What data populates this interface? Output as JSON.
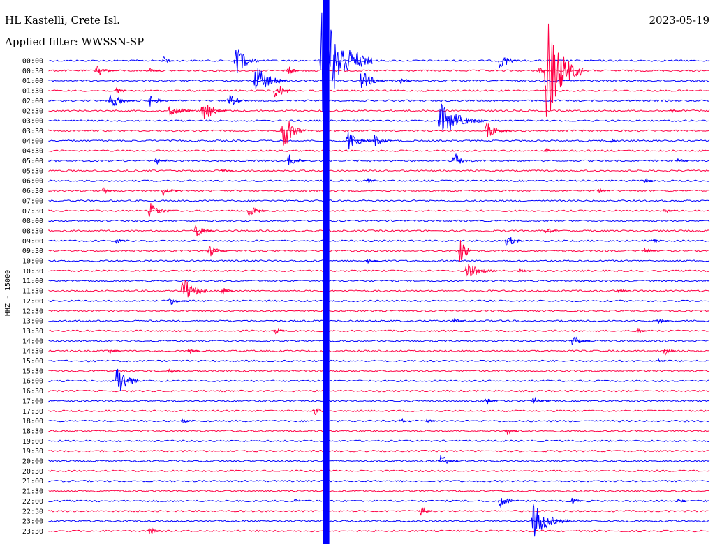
{
  "header": {
    "station": "HL Kastelli, Crete Isl.",
    "date": "2023-05-19",
    "filter": "Applied filter: WWSSN-SP"
  },
  "chart_data": {
    "type": "line",
    "title": "HL Kastelli, Crete Isl.",
    "subtitle": "Applied filter: WWSSN-SP",
    "ylabel": "HHZ - 15000",
    "colors": {
      "even": "#0000ff",
      "odd": "#ff0044"
    },
    "rows": [
      "00:00",
      "00:30",
      "01:00",
      "01:30",
      "02:00",
      "02:30",
      "03:00",
      "03:30",
      "04:00",
      "04:30",
      "05:00",
      "05:30",
      "06:00",
      "06:30",
      "07:00",
      "07:30",
      "08:00",
      "08:30",
      "09:00",
      "09:30",
      "10:00",
      "10:30",
      "11:00",
      "11:30",
      "12:00",
      "12:30",
      "13:00",
      "13:30",
      "14:00",
      "14:30",
      "15:00",
      "15:30",
      "16:00",
      "16:30",
      "17:00",
      "17:30",
      "18:00",
      "18:30",
      "19:00",
      "19:30",
      "20:00",
      "20:30",
      "21:00",
      "21:30",
      "22:00",
      "22:30",
      "23:00",
      "23:30"
    ],
    "events": [
      {
        "row": 0,
        "x": 0.17,
        "amp": 10,
        "dur": 0.02
      },
      {
        "row": 0,
        "x": 0.28,
        "amp": 30,
        "dur": 0.04
      },
      {
        "row": 0,
        "x": 0.41,
        "amp": 95,
        "dur": 0.08
      },
      {
        "row": 0,
        "x": 0.68,
        "amp": 22,
        "dur": 0.03
      },
      {
        "row": 1,
        "x": 0.07,
        "amp": 14,
        "dur": 0.03
      },
      {
        "row": 1,
        "x": 0.15,
        "amp": 8,
        "dur": 0.02
      },
      {
        "row": 1,
        "x": 0.36,
        "amp": 12,
        "dur": 0.02
      },
      {
        "row": 1,
        "x": 0.74,
        "amp": 10,
        "dur": 0.02
      },
      {
        "row": 1,
        "x": 0.75,
        "amp": 95,
        "dur": 0.06
      },
      {
        "row": 2,
        "x": 0.31,
        "amp": 30,
        "dur": 0.05
      },
      {
        "row": 2,
        "x": 0.47,
        "amp": 20,
        "dur": 0.04
      },
      {
        "row": 2,
        "x": 0.53,
        "amp": 10,
        "dur": 0.02
      },
      {
        "row": 3,
        "x": 0.1,
        "amp": 10,
        "dur": 0.02
      },
      {
        "row": 3,
        "x": 0.34,
        "amp": 20,
        "dur": 0.03
      },
      {
        "row": 4,
        "x": 0.09,
        "amp": 18,
        "dur": 0.04
      },
      {
        "row": 4,
        "x": 0.15,
        "amp": 12,
        "dur": 0.03
      },
      {
        "row": 4,
        "x": 0.27,
        "amp": 14,
        "dur": 0.03
      },
      {
        "row": 5,
        "x": 0.18,
        "amp": 14,
        "dur": 0.04
      },
      {
        "row": 5,
        "x": 0.23,
        "amp": 22,
        "dur": 0.04
      },
      {
        "row": 5,
        "x": 0.94,
        "amp": 6,
        "dur": 0.02
      },
      {
        "row": 6,
        "x": 0.59,
        "amp": 30,
        "dur": 0.07
      },
      {
        "row": 7,
        "x": 0.35,
        "amp": 40,
        "dur": 0.04
      },
      {
        "row": 7,
        "x": 0.66,
        "amp": 16,
        "dur": 0.04
      },
      {
        "row": 8,
        "x": 0.45,
        "amp": 18,
        "dur": 0.04
      },
      {
        "row": 8,
        "x": 0.49,
        "amp": 14,
        "dur": 0.03
      },
      {
        "row": 8,
        "x": 0.85,
        "amp": 10,
        "dur": 0.01
      },
      {
        "row": 9,
        "x": 0.75,
        "amp": 6,
        "dur": 0.02
      },
      {
        "row": 10,
        "x": 0.16,
        "amp": 10,
        "dur": 0.02
      },
      {
        "row": 10,
        "x": 0.36,
        "amp": 14,
        "dur": 0.03
      },
      {
        "row": 10,
        "x": 0.61,
        "amp": 30,
        "dur": 0.02
      },
      {
        "row": 10,
        "x": 0.95,
        "amp": 6,
        "dur": 0.02
      },
      {
        "row": 11,
        "x": 0.26,
        "amp": 6,
        "dur": 0.02
      },
      {
        "row": 12,
        "x": 0.48,
        "amp": 6,
        "dur": 0.02
      },
      {
        "row": 12,
        "x": 0.9,
        "amp": 10,
        "dur": 0.02
      },
      {
        "row": 13,
        "x": 0.08,
        "amp": 8,
        "dur": 0.02
      },
      {
        "row": 13,
        "x": 0.17,
        "amp": 10,
        "dur": 0.03
      },
      {
        "row": 13,
        "x": 0.83,
        "amp": 6,
        "dur": 0.02
      },
      {
        "row": 15,
        "x": 0.15,
        "amp": 16,
        "dur": 0.04
      },
      {
        "row": 15,
        "x": 0.3,
        "amp": 14,
        "dur": 0.03
      },
      {
        "row": 15,
        "x": 0.93,
        "amp": 6,
        "dur": 0.02
      },
      {
        "row": 17,
        "x": 0.22,
        "amp": 14,
        "dur": 0.03
      },
      {
        "row": 17,
        "x": 0.75,
        "amp": 10,
        "dur": 0.02
      },
      {
        "row": 18,
        "x": 0.1,
        "amp": 8,
        "dur": 0.02
      },
      {
        "row": 18,
        "x": 0.69,
        "amp": 14,
        "dur": 0.03
      },
      {
        "row": 18,
        "x": 0.91,
        "amp": 10,
        "dur": 0.02
      },
      {
        "row": 19,
        "x": 0.24,
        "amp": 14,
        "dur": 0.03
      },
      {
        "row": 19,
        "x": 0.62,
        "amp": 40,
        "dur": 0.02
      },
      {
        "row": 19,
        "x": 0.9,
        "amp": 10,
        "dur": 0.02
      },
      {
        "row": 20,
        "x": 0.48,
        "amp": 6,
        "dur": 0.02
      },
      {
        "row": 21,
        "x": 0.63,
        "amp": 16,
        "dur": 0.05
      },
      {
        "row": 21,
        "x": 0.71,
        "amp": 6,
        "dur": 0.02
      },
      {
        "row": 23,
        "x": 0.2,
        "amp": 30,
        "dur": 0.04
      },
      {
        "row": 23,
        "x": 0.26,
        "amp": 10,
        "dur": 0.02
      },
      {
        "row": 23,
        "x": 0.86,
        "amp": 8,
        "dur": 0.02
      },
      {
        "row": 24,
        "x": 0.18,
        "amp": 10,
        "dur": 0.03
      },
      {
        "row": 26,
        "x": 0.61,
        "amp": 8,
        "dur": 0.02
      },
      {
        "row": 26,
        "x": 0.92,
        "amp": 10,
        "dur": 0.02
      },
      {
        "row": 27,
        "x": 0.34,
        "amp": 8,
        "dur": 0.02
      },
      {
        "row": 27,
        "x": 0.89,
        "amp": 6,
        "dur": 0.02
      },
      {
        "row": 28,
        "x": 0.79,
        "amp": 12,
        "dur": 0.03
      },
      {
        "row": 29,
        "x": 0.09,
        "amp": 6,
        "dur": 0.02
      },
      {
        "row": 29,
        "x": 0.21,
        "amp": 6,
        "dur": 0.02
      },
      {
        "row": 29,
        "x": 0.93,
        "amp": 10,
        "dur": 0.02
      },
      {
        "row": 30,
        "x": 0.92,
        "amp": 4,
        "dur": 0.02
      },
      {
        "row": 31,
        "x": 0.18,
        "amp": 6,
        "dur": 0.02
      },
      {
        "row": 32,
        "x": 0.1,
        "amp": 34,
        "dur": 0.04
      },
      {
        "row": 34,
        "x": 0.66,
        "amp": 8,
        "dur": 0.02
      },
      {
        "row": 34,
        "x": 0.73,
        "amp": 10,
        "dur": 0.03
      },
      {
        "row": 35,
        "x": 0.4,
        "amp": 12,
        "dur": 0.02
      },
      {
        "row": 36,
        "x": 0.2,
        "amp": 6,
        "dur": 0.02
      },
      {
        "row": 36,
        "x": 0.53,
        "amp": 6,
        "dur": 0.02
      },
      {
        "row": 36,
        "x": 0.57,
        "amp": 6,
        "dur": 0.02
      },
      {
        "row": 37,
        "x": 0.69,
        "amp": 10,
        "dur": 0.02
      },
      {
        "row": 40,
        "x": 0.59,
        "amp": 14,
        "dur": 0.03
      },
      {
        "row": 44,
        "x": 0.37,
        "amp": 6,
        "dur": 0.02
      },
      {
        "row": 44,
        "x": 0.68,
        "amp": 16,
        "dur": 0.03
      },
      {
        "row": 44,
        "x": 0.79,
        "amp": 10,
        "dur": 0.02
      },
      {
        "row": 44,
        "x": 0.95,
        "amp": 6,
        "dur": 0.02
      },
      {
        "row": 45,
        "x": 0.56,
        "amp": 14,
        "dur": 0.02
      },
      {
        "row": 46,
        "x": 0.73,
        "amp": 30,
        "dur": 0.06
      },
      {
        "row": 47,
        "x": 0.15,
        "amp": 10,
        "dur": 0.02
      }
    ],
    "outage": {
      "x": 0.415,
      "from_row": 0,
      "to_row": 47
    }
  }
}
